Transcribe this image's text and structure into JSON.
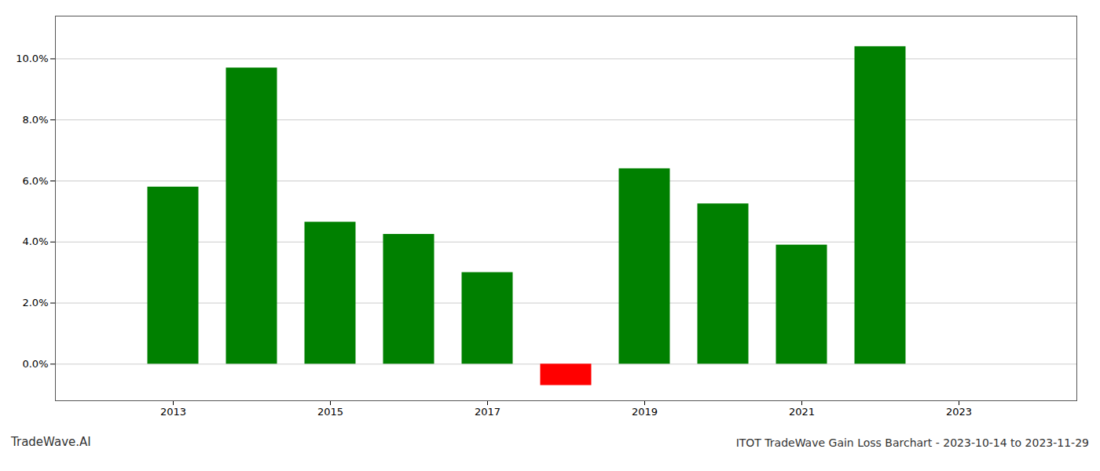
{
  "chart_data": {
    "type": "bar",
    "title": "ITOT TradeWave Gain Loss Barchart - 2023-10-14 to 2023-11-29",
    "annotations": [
      "TradeWave.AI"
    ],
    "x": [
      2013,
      2014,
      2015,
      2016,
      2017,
      2018,
      2019,
      2020,
      2021,
      2022
    ],
    "values": [
      0.058,
      0.097,
      0.0465,
      0.0425,
      0.03,
      -0.007,
      0.064,
      0.0525,
      0.039,
      0.104
    ],
    "colors": [
      "#008000",
      "#008000",
      "#008000",
      "#008000",
      "#008000",
      "#ff0000",
      "#008000",
      "#008000",
      "#008000",
      "#008000"
    ],
    "xlim": [
      2011.5,
      2024.5
    ],
    "xticks": [
      2013,
      2015,
      2017,
      2019,
      2021,
      2023
    ],
    "ylim": [
      -0.012,
      0.114
    ],
    "yticks": [
      {
        "value": 0.0,
        "label": "0.0%"
      },
      {
        "value": 0.02,
        "label": "2.0%"
      },
      {
        "value": 0.04,
        "label": "4.0%"
      },
      {
        "value": 0.06,
        "label": "6.0%"
      },
      {
        "value": 0.08,
        "label": "8.0%"
      },
      {
        "value": 0.1,
        "label": "10.0%"
      }
    ],
    "grid": true
  }
}
